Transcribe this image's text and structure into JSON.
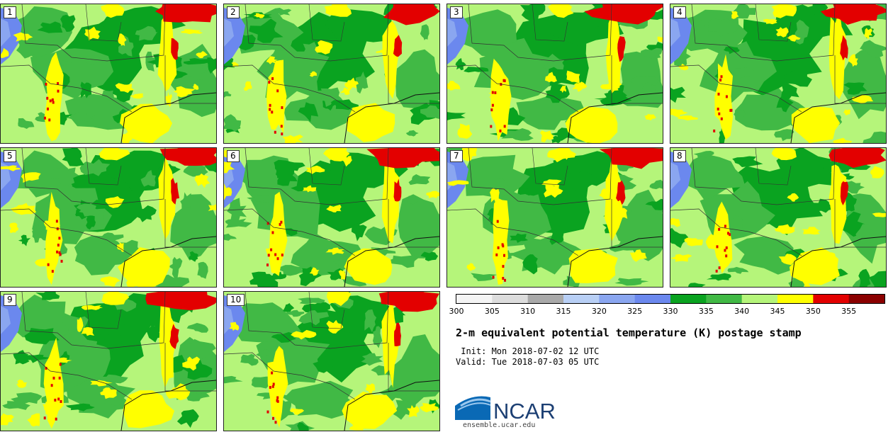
{
  "panels": [
    {
      "label": "1"
    },
    {
      "label": "2"
    },
    {
      "label": "3"
    },
    {
      "label": "4"
    },
    {
      "label": "5"
    },
    {
      "label": "6"
    },
    {
      "label": "7"
    },
    {
      "label": "8"
    },
    {
      "label": "9"
    },
    {
      "label": "10"
    }
  ],
  "legend": {
    "ticks": [
      "300",
      "305",
      "310",
      "315",
      "320",
      "325",
      "330",
      "335",
      "340",
      "345",
      "350",
      "355"
    ],
    "bins": [
      {
        "min": 300,
        "max": 305,
        "color": "#f4f4f4"
      },
      {
        "min": 305,
        "max": 310,
        "color": "#dcdcdc"
      },
      {
        "min": 310,
        "max": 315,
        "color": "#a9a9a9"
      },
      {
        "min": 315,
        "max": 320,
        "color": "#b8cff5"
      },
      {
        "min": 320,
        "max": 325,
        "color": "#8aa6f0"
      },
      {
        "min": 325,
        "max": 330,
        "color": "#6b88ee"
      },
      {
        "min": 330,
        "max": 335,
        "color": "#0aa320"
      },
      {
        "min": 335,
        "max": 340,
        "color": "#41b945"
      },
      {
        "min": 340,
        "max": 345,
        "color": "#b5f57a"
      },
      {
        "min": 345,
        "max": 350,
        "color": "#ffff00"
      },
      {
        "min": 350,
        "max": 355,
        "color": "#e30000"
      },
      {
        "min": 355,
        "max": 360,
        "color": "#8b0000"
      }
    ]
  },
  "title": "2-m equivalent potential temperature (K) postage stamp",
  "init": " Init: Mon 2018-07-02 12 UTC",
  "valid": "Valid: Tue 2018-07-03 05 UTC",
  "logo": {
    "text": "NCAR",
    "url": "ensemble.ucar.edu"
  }
}
